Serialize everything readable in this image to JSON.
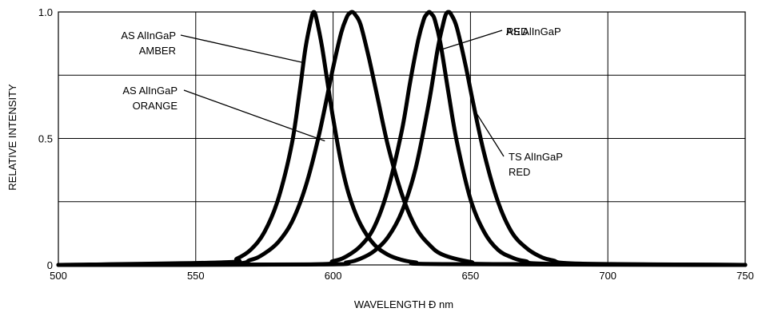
{
  "chart_data": {
    "type": "line",
    "xlabel": "WAVELENGTH Ð nm",
    "ylabel": "RELATIVE INTENSITY",
    "xlim": [
      500,
      750
    ],
    "ylim": [
      0,
      1.0
    ],
    "x_ticks": [
      500,
      550,
      600,
      650,
      700,
      750
    ],
    "x_tick_labels": [
      "500",
      "550",
      "600",
      "650",
      "700",
      "750"
    ],
    "y_ticks": [
      0,
      0.5,
      1.0
    ],
    "y_tick_labels": [
      "0",
      "0.5",
      "1.0"
    ],
    "y_grid": [
      0,
      0.25,
      0.5,
      0.75,
      1.0
    ],
    "grid": true,
    "series": [
      {
        "peak": 593,
        "x": [
          500,
          560,
          565,
          570,
          575,
          580,
          585,
          588,
          590,
          592,
          593,
          594,
          596,
          598,
          600,
          603,
          606,
          610,
          615,
          620,
          625,
          630,
          640,
          750
        ],
        "values": [
          0,
          0.01,
          0.025,
          0.06,
          0.13,
          0.26,
          0.48,
          0.7,
          0.86,
          0.97,
          1.0,
          0.97,
          0.86,
          0.72,
          0.58,
          0.4,
          0.27,
          0.16,
          0.08,
          0.04,
          0.02,
          0.01,
          0.003,
          0
        ]
      },
      {
        "peak": 607,
        "x": [
          500,
          560,
          570,
          575,
          580,
          585,
          590,
          595,
          600,
          603,
          605,
          606,
          607,
          608,
          610,
          613,
          616,
          620,
          625,
          630,
          635,
          640,
          650,
          660,
          750
        ],
        "values": [
          0,
          0.003,
          0.02,
          0.045,
          0.09,
          0.17,
          0.31,
          0.52,
          0.78,
          0.92,
          0.98,
          0.995,
          1.0,
          0.99,
          0.95,
          0.82,
          0.67,
          0.47,
          0.28,
          0.15,
          0.08,
          0.04,
          0.012,
          0.003,
          0
        ]
      },
      {
        "peak": 635,
        "x": [
          500,
          590,
          600,
          605,
          610,
          615,
          620,
          625,
          628,
          631,
          633,
          634,
          635,
          636,
          637,
          639,
          642,
          645,
          650,
          655,
          660,
          665,
          670,
          680,
          750
        ],
        "values": [
          0,
          0.002,
          0.015,
          0.035,
          0.075,
          0.15,
          0.3,
          0.53,
          0.72,
          0.89,
          0.97,
          0.99,
          1.0,
          0.99,
          0.97,
          0.88,
          0.68,
          0.49,
          0.26,
          0.13,
          0.06,
          0.03,
          0.015,
          0.004,
          0
        ]
      },
      {
        "peak": 642,
        "x": [
          500,
          595,
          605,
          610,
          615,
          620,
          625,
          630,
          635,
          638,
          640,
          641,
          642,
          643,
          645,
          648,
          651,
          655,
          660,
          665,
          670,
          675,
          680,
          690,
          750
        ],
        "values": [
          0,
          0.002,
          0.01,
          0.025,
          0.055,
          0.11,
          0.21,
          0.38,
          0.65,
          0.85,
          0.95,
          0.99,
          1.0,
          0.99,
          0.94,
          0.8,
          0.64,
          0.44,
          0.25,
          0.13,
          0.07,
          0.035,
          0.018,
          0.005,
          0
        ]
      }
    ],
    "annotations": [
      {
        "lines": [
          "AS AlInGaP",
          "AMBER"
        ],
        "target": {
          "x": 589,
          "y": 0.8
        }
      },
      {
        "lines": [
          "AS AlInGaP",
          "ORANGE"
        ],
        "target": {
          "x": 597,
          "y": 0.49
        }
      },
      {
        "lines": [
          "RED"
        ],
        "target": {
          "x": 639,
          "y": 0.85
        }
      },
      {
        "lines": [
          "AS AlInGaP"
        ],
        "target": {
          "x": 639,
          "y": 0.85
        }
      },
      {
        "lines": [
          "TS AlInGaP",
          "RED"
        ],
        "target": {
          "x": 651,
          "y": 0.62
        }
      }
    ]
  }
}
